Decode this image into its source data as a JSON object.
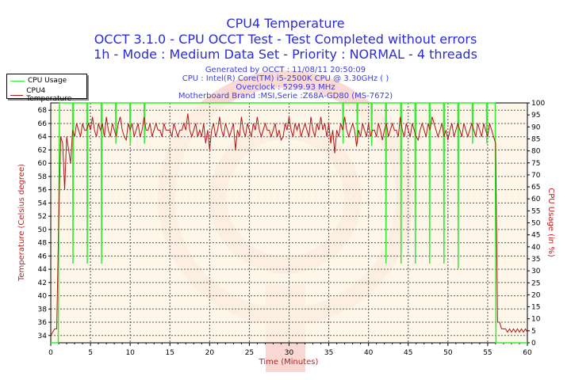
{
  "header": {
    "title": "CPU4 Temperature",
    "line2": "OCCT 3.1.0 - CPU OCCT Test - Test Completed without errors",
    "line3": "1h - Mode : Medium Data Set - Priority : NORMAL - 4 threads",
    "generated": "Generated by OCCT : 11/08/11 20:50:09",
    "cpu": "CPU : Intel(R) Core(TM) i5-2500K CPU @ 3.30GHz (  )",
    "overclock": "Overclock : 5299.93 MHz",
    "motherboard": "Motherboard Brand :MSI,Serie :Z68A-GD80 (MS-7672)"
  },
  "colors": {
    "title": "#2b2bd8",
    "usage": "#33ee33",
    "temperature": "#b01818",
    "plot_bg": "#fdf4e4",
    "axis_label": "#c02020"
  },
  "chart_data": {
    "type": "line",
    "xlabel": "Time (Minutes)",
    "ylabel": "Temperature (Celsius degree)",
    "y2label": "CPU Usage (in %)",
    "xlim": [
      0,
      60
    ],
    "ylim": [
      32.9,
      69.1
    ],
    "y2lim": [
      0,
      100
    ],
    "xticks": [
      0,
      5,
      10,
      15,
      20,
      25,
      30,
      35,
      40,
      45,
      50,
      55,
      60
    ],
    "yticks": [
      34,
      36,
      38,
      40,
      42,
      44,
      46,
      48,
      50,
      52,
      54,
      56,
      58,
      60,
      62,
      64,
      66,
      68
    ],
    "y2ticks": [
      0,
      5,
      10,
      15,
      20,
      25,
      30,
      35,
      40,
      45,
      50,
      55,
      60,
      65,
      70,
      75,
      80,
      85,
      90,
      95,
      100
    ],
    "grid": true,
    "legend_position": "top-left",
    "series": [
      {
        "name": "CPU Usage",
        "axis": "right",
        "color": "#33ee33",
        "x": [
          0,
          0.95,
          1.0,
          1.1,
          2.75,
          2.8,
          2.85,
          4.55,
          4.6,
          4.65,
          6.35,
          6.4,
          6.45,
          8.15,
          8.2,
          8.25,
          9.95,
          10,
          10.05,
          11.75,
          11.8,
          11.85,
          36.75,
          36.8,
          36.85,
          38.55,
          38.6,
          38.65,
          40.35,
          40.4,
          40.45,
          42.15,
          42.2,
          42.25,
          44.05,
          44.1,
          44.15,
          45.85,
          45.9,
          45.95,
          47.65,
          47.7,
          47.75,
          49.45,
          49.5,
          49.55,
          51.25,
          51.3,
          51.35,
          53.05,
          53.1,
          53.15,
          54.85,
          54.9,
          54.95,
          55.95,
          56.0,
          56.05,
          60
        ],
        "y": [
          0,
          0,
          49,
          100,
          100,
          33,
          100,
          100,
          33,
          100,
          100,
          33,
          100,
          100,
          83,
          100,
          100,
          83,
          100,
          100,
          83,
          100,
          100,
          83,
          100,
          100,
          83,
          100,
          100,
          82,
          100,
          100,
          33,
          100,
          100,
          33,
          100,
          100,
          33,
          100,
          100,
          33,
          100,
          100,
          33,
          100,
          100,
          31,
          100,
          100,
          83,
          100,
          100,
          83,
          100,
          100,
          41,
          0,
          0
        ]
      },
      {
        "name": "CPU4 Temperature",
        "axis": "left",
        "color": "#b01818",
        "x_step": 0.25,
        "y": [
          34,
          34.5,
          35,
          35,
          51,
          64,
          63,
          56,
          64,
          62,
          60,
          65,
          64,
          66,
          65,
          64,
          66,
          65,
          65,
          66,
          65,
          67,
          65,
          64,
          66,
          65,
          66,
          64,
          67,
          65,
          64,
          66,
          65,
          64,
          66,
          67,
          65,
          64,
          63.5,
          66,
          65,
          66,
          64,
          65,
          66,
          64,
          65,
          67,
          65,
          65,
          66,
          64,
          65,
          66,
          65,
          65,
          64,
          66,
          65,
          65,
          65,
          64,
          66,
          65,
          64,
          65,
          65,
          66,
          65,
          67.5,
          65,
          64,
          65,
          66,
          64,
          65,
          64,
          66,
          63,
          65,
          62,
          65,
          66,
          64,
          65,
          67,
          65,
          64,
          66,
          65,
          64,
          65,
          66,
          62,
          65,
          64,
          67,
          65,
          64,
          66,
          65,
          64,
          66,
          65,
          67,
          65,
          64,
          65,
          66,
          65,
          65,
          64,
          65,
          66,
          64,
          65,
          63.5,
          64,
          66,
          65,
          67,
          65,
          64,
          66,
          65,
          66,
          64,
          65,
          66,
          65,
          64,
          67,
          65,
          64,
          66,
          65,
          67,
          65,
          66,
          64,
          66,
          63,
          65,
          61.5,
          65,
          64,
          66,
          65,
          67,
          65,
          64,
          65,
          66,
          65,
          62.5,
          65,
          64,
          66,
          65,
          64,
          66,
          64,
          65,
          65,
          64,
          66,
          65,
          63.5,
          65,
          66,
          64,
          65,
          66,
          65,
          65,
          64,
          67,
          65,
          64,
          66,
          65,
          64,
          66,
          65,
          64,
          63.5,
          65,
          66,
          65,
          64,
          66,
          65,
          67,
          66,
          65,
          64,
          65,
          66,
          64,
          65,
          63.5,
          65,
          66,
          64,
          65,
          66,
          65,
          64,
          66,
          65,
          64,
          65,
          66,
          65,
          64,
          66,
          65,
          64,
          66,
          65,
          64,
          66,
          65,
          64,
          63,
          36,
          36,
          35,
          35,
          35,
          34.5,
          35,
          34.5,
          35,
          34.5,
          35,
          34.5,
          35,
          34.5,
          35,
          34.5
        ]
      }
    ]
  }
}
